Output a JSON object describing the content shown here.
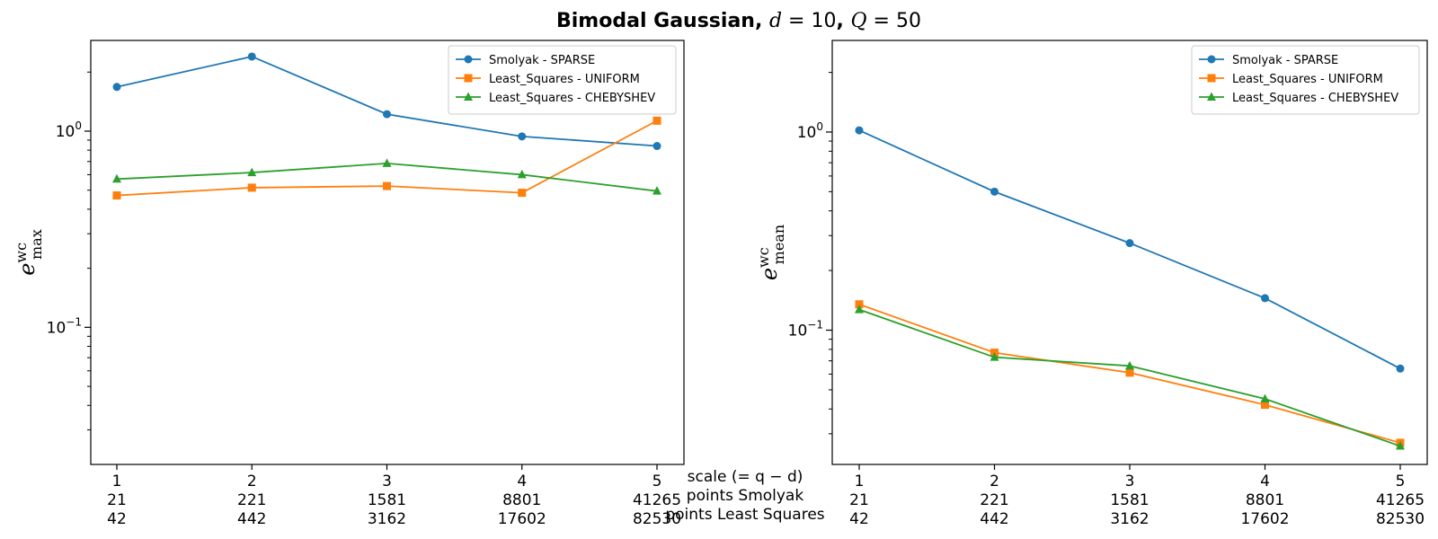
{
  "title": {
    "bold": "Bimodal Gaussian, ",
    "math1_var": "d",
    "math1_eq": " = 10",
    "sep": ", ",
    "math2_var": "Q",
    "math2_eq": " = 50"
  },
  "xlabel_lines": [
    "scale (= q − d)",
    "points Smolyak",
    "points Least Squares"
  ],
  "colors": {
    "smolyak": "#1f77b4",
    "ls_uniform": "#ff7f0e",
    "ls_cheb": "#2ca02c"
  },
  "chart_data": [
    {
      "type": "line",
      "yscale": "log",
      "ylim": [
        0.02,
        2.9
      ],
      "ylabel": {
        "base": "e",
        "sup": "wc",
        "sub": "max"
      },
      "yticks": [
        {
          "value": 1,
          "base": "10",
          "exp": "0"
        },
        {
          "value": 0.1,
          "base": "10",
          "exp": "−1"
        }
      ],
      "x": [
        1,
        2,
        3,
        4,
        5
      ],
      "xtick_rows": [
        [
          "1",
          "2",
          "3",
          "4",
          "5"
        ],
        [
          "21",
          "221",
          "1581",
          "8801",
          "41265"
        ],
        [
          "42",
          "442",
          "3162",
          "17602",
          "82530"
        ]
      ],
      "legend_position": "upper-right",
      "series": [
        {
          "name": "Smolyak - SPARSE",
          "color": "#1f77b4",
          "marker": "circle",
          "values": [
            1.68,
            2.4,
            1.22,
            0.94,
            0.84
          ]
        },
        {
          "name": "Least_Squares - UNIFORM",
          "color": "#ff7f0e",
          "marker": "square",
          "values": [
            0.47,
            0.515,
            0.525,
            0.485,
            1.13
          ]
        },
        {
          "name": "Least_Squares - CHEBYSHEV",
          "color": "#2ca02c",
          "marker": "triangle",
          "values": [
            0.57,
            0.615,
            0.685,
            0.6,
            0.495
          ]
        }
      ]
    },
    {
      "type": "line",
      "yscale": "log",
      "ylim": [
        0.021,
        2.9
      ],
      "ylabel": {
        "base": "e",
        "sup": "wc",
        "sub": "mean"
      },
      "yticks": [
        {
          "value": 1,
          "base": "10",
          "exp": "0"
        },
        {
          "value": 0.1,
          "base": "10",
          "exp": "−1"
        }
      ],
      "x": [
        1,
        2,
        3,
        4,
        5
      ],
      "xtick_rows": [
        [
          "1",
          "2",
          "3",
          "4",
          "5"
        ],
        [
          "21",
          "221",
          "1581",
          "8801",
          "41265"
        ],
        [
          "42",
          "442",
          "3162",
          "17602",
          "82530"
        ]
      ],
      "legend_position": "upper-right",
      "series": [
        {
          "name": "Smolyak - SPARSE",
          "color": "#1f77b4",
          "marker": "circle",
          "values": [
            1.02,
            0.5,
            0.275,
            0.145,
            0.064
          ]
        },
        {
          "name": "Least_Squares - UNIFORM",
          "color": "#ff7f0e",
          "marker": "square",
          "values": [
            0.135,
            0.077,
            0.061,
            0.042,
            0.027
          ]
        },
        {
          "name": "Least_Squares - CHEBYSHEV",
          "color": "#2ca02c",
          "marker": "triangle",
          "values": [
            0.127,
            0.073,
            0.066,
            0.045,
            0.026
          ]
        }
      ]
    }
  ]
}
